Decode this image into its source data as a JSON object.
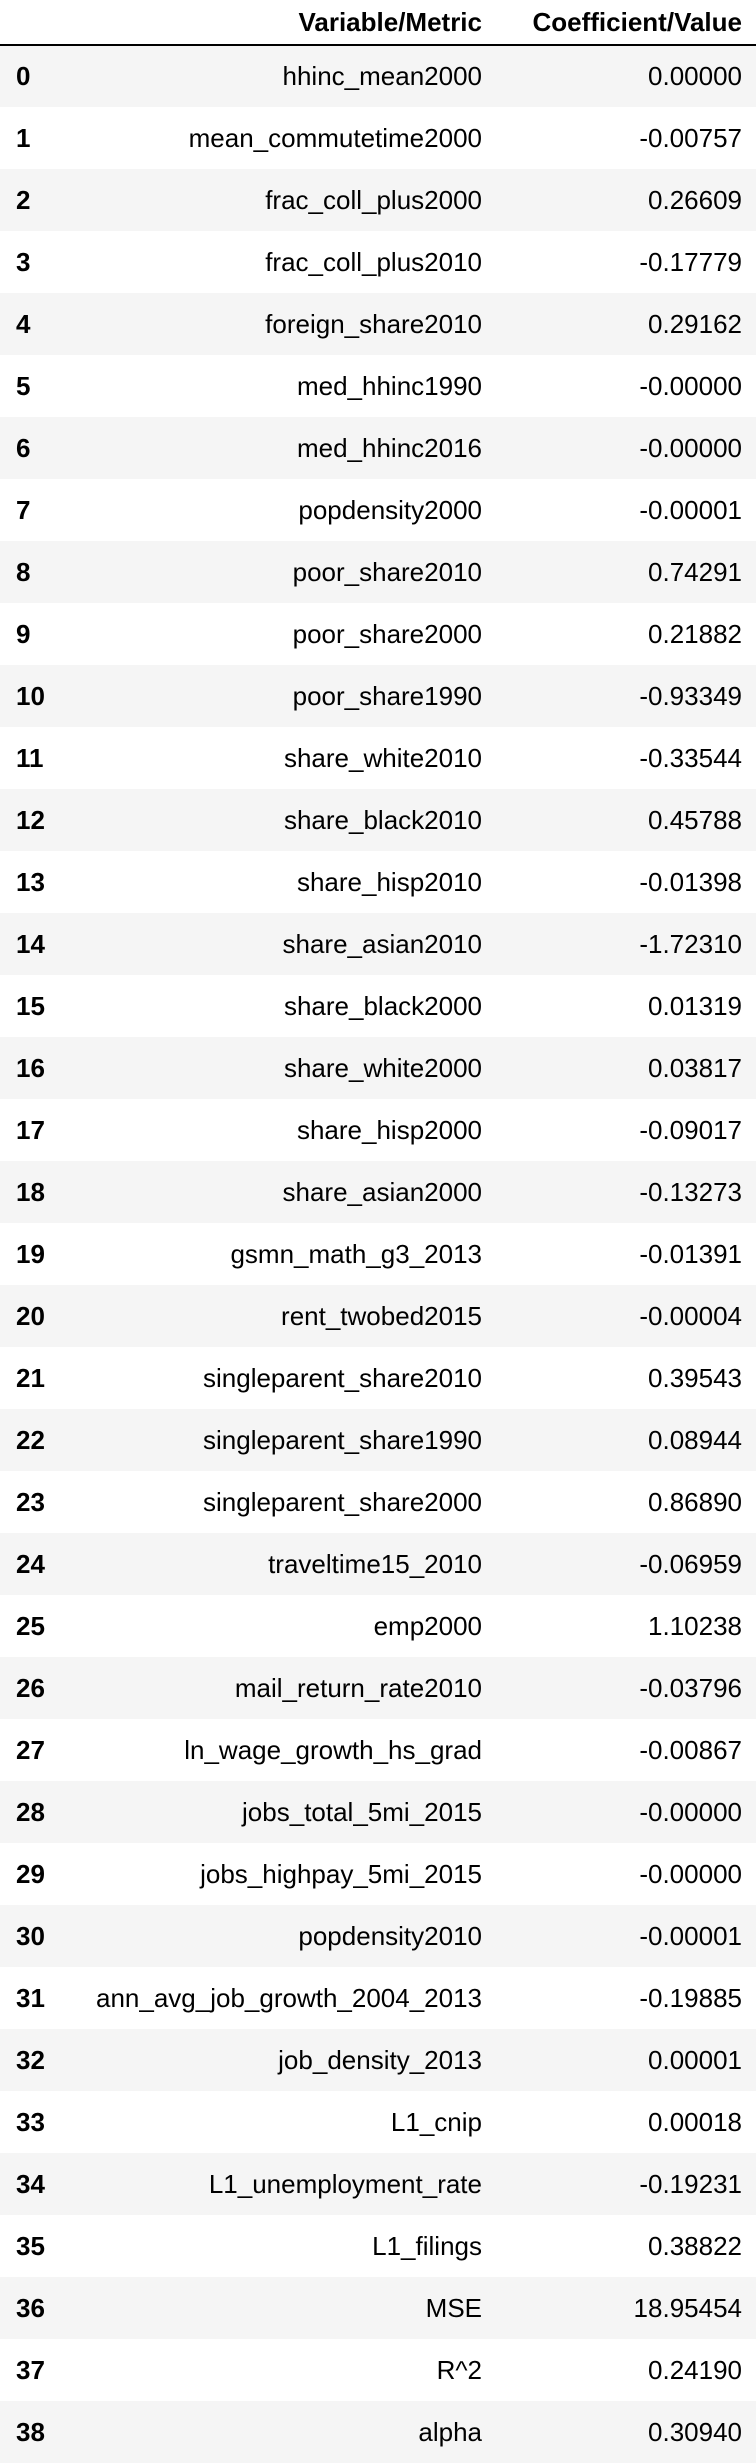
{
  "table": {
    "headers": {
      "index": "",
      "variable": "Variable/Metric",
      "value": "Coefficient/Value"
    },
    "rows": [
      {
        "index": "0",
        "variable": "hhinc_mean2000",
        "value": "0.00000"
      },
      {
        "index": "1",
        "variable": "mean_commutetime2000",
        "value": "-0.00757"
      },
      {
        "index": "2",
        "variable": "frac_coll_plus2000",
        "value": "0.26609"
      },
      {
        "index": "3",
        "variable": "frac_coll_plus2010",
        "value": "-0.17779"
      },
      {
        "index": "4",
        "variable": "foreign_share2010",
        "value": "0.29162"
      },
      {
        "index": "5",
        "variable": "med_hhinc1990",
        "value": "-0.00000"
      },
      {
        "index": "6",
        "variable": "med_hhinc2016",
        "value": "-0.00000"
      },
      {
        "index": "7",
        "variable": "popdensity2000",
        "value": "-0.00001"
      },
      {
        "index": "8",
        "variable": "poor_share2010",
        "value": "0.74291"
      },
      {
        "index": "9",
        "variable": "poor_share2000",
        "value": "0.21882"
      },
      {
        "index": "10",
        "variable": "poor_share1990",
        "value": "-0.93349"
      },
      {
        "index": "11",
        "variable": "share_white2010",
        "value": "-0.33544"
      },
      {
        "index": "12",
        "variable": "share_black2010",
        "value": "0.45788"
      },
      {
        "index": "13",
        "variable": "share_hisp2010",
        "value": "-0.01398"
      },
      {
        "index": "14",
        "variable": "share_asian2010",
        "value": "-1.72310"
      },
      {
        "index": "15",
        "variable": "share_black2000",
        "value": "0.01319"
      },
      {
        "index": "16",
        "variable": "share_white2000",
        "value": "0.03817"
      },
      {
        "index": "17",
        "variable": "share_hisp2000",
        "value": "-0.09017"
      },
      {
        "index": "18",
        "variable": "share_asian2000",
        "value": "-0.13273"
      },
      {
        "index": "19",
        "variable": "gsmn_math_g3_2013",
        "value": "-0.01391"
      },
      {
        "index": "20",
        "variable": "rent_twobed2015",
        "value": "-0.00004"
      },
      {
        "index": "21",
        "variable": "singleparent_share2010",
        "value": "0.39543"
      },
      {
        "index": "22",
        "variable": "singleparent_share1990",
        "value": "0.08944"
      },
      {
        "index": "23",
        "variable": "singleparent_share2000",
        "value": "0.86890"
      },
      {
        "index": "24",
        "variable": "traveltime15_2010",
        "value": "-0.06959"
      },
      {
        "index": "25",
        "variable": "emp2000",
        "value": "1.10238"
      },
      {
        "index": "26",
        "variable": "mail_return_rate2010",
        "value": "-0.03796"
      },
      {
        "index": "27",
        "variable": "ln_wage_growth_hs_grad",
        "value": "-0.00867"
      },
      {
        "index": "28",
        "variable": "jobs_total_5mi_2015",
        "value": "-0.00000"
      },
      {
        "index": "29",
        "variable": "jobs_highpay_5mi_2015",
        "value": "-0.00000"
      },
      {
        "index": "30",
        "variable": "popdensity2010",
        "value": "-0.00001"
      },
      {
        "index": "31",
        "variable": "ann_avg_job_growth_2004_2013",
        "value": "-0.19885"
      },
      {
        "index": "32",
        "variable": "job_density_2013",
        "value": "0.00001"
      },
      {
        "index": "33",
        "variable": "L1_cnip",
        "value": "0.00018"
      },
      {
        "index": "34",
        "variable": "L1_unemployment_rate",
        "value": "-0.19231"
      },
      {
        "index": "35",
        "variable": "L1_filings",
        "value": "0.38822"
      },
      {
        "index": "36",
        "variable": "MSE",
        "value": "18.95454"
      },
      {
        "index": "37",
        "variable": "R^2",
        "value": "0.24190"
      },
      {
        "index": "38",
        "variable": "alpha",
        "value": "0.30940"
      }
    ]
  }
}
